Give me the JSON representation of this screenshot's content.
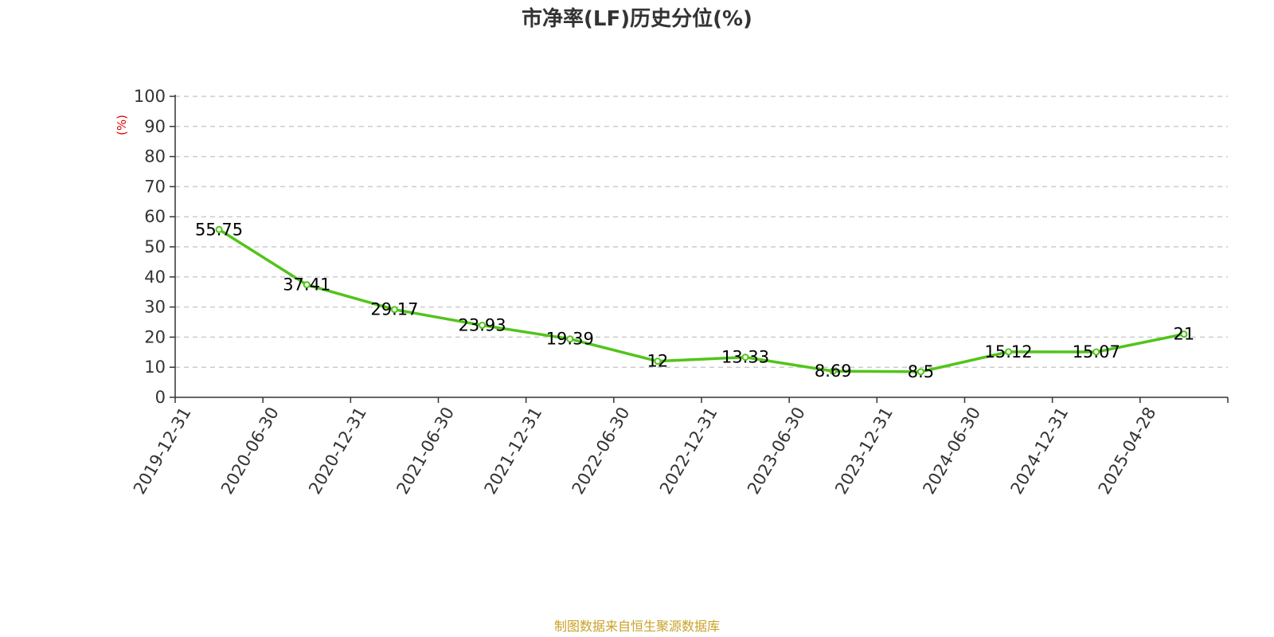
{
  "chart_data": {
    "type": "line",
    "title": "市净率(LF)历史分位(%)",
    "ylabel": "(%)",
    "xlabel": "",
    "categories": [
      "2019-12-31",
      "2020-06-30",
      "2020-12-31",
      "2021-06-30",
      "2021-12-31",
      "2022-06-30",
      "2022-12-31",
      "2023-06-30",
      "2023-12-31",
      "2024-06-30",
      "2024-12-31",
      "2025-04-28"
    ],
    "series": [
      {
        "values": [
          55.75,
          37.41,
          29.17,
          23.93,
          19.39,
          12,
          13.33,
          8.69,
          8.5,
          15.12,
          15.07,
          21
        ],
        "labels": [
          "55.75",
          "37.41",
          "29.17",
          "23.93",
          "19.39",
          "12",
          "13.33",
          "8.69",
          "8.5",
          "15.12",
          "15.07",
          "21"
        ]
      }
    ],
    "ylim": [
      0,
      100
    ],
    "yticks": [
      0,
      10,
      20,
      30,
      40,
      50,
      60,
      70,
      80,
      90,
      100
    ],
    "grid": true,
    "legend": "none"
  },
  "source": "制图数据来自恒生聚源数据库",
  "colors": {
    "line": "#52c41a",
    "grid": "#cccccc",
    "axis": "#333333",
    "unit": "#e60000",
    "source": "#c9a227"
  }
}
